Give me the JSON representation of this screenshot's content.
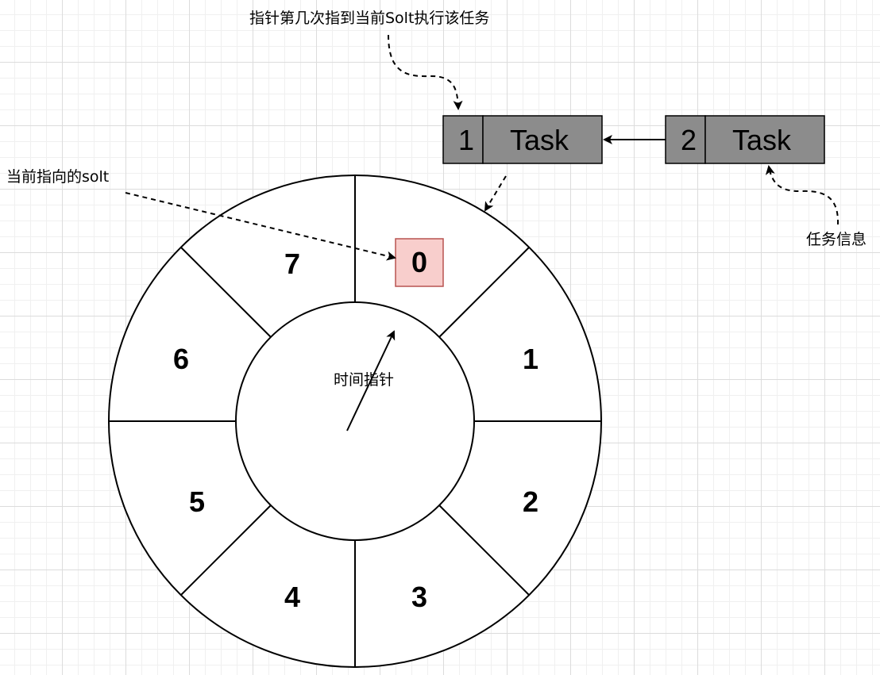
{
  "diagram": {
    "slot_labels": [
      "0",
      "1",
      "2",
      "3",
      "4",
      "5",
      "6",
      "7"
    ],
    "current_slot": "0",
    "pointer_label": "时间指针",
    "current_slot_annotation": "当前指向的solt",
    "round_annotation": "指针第几次指到当前Solt执行该任务",
    "task_info_annotation": "任务信息",
    "tasks": [
      {
        "round": "1",
        "name": "Task"
      },
      {
        "round": "2",
        "name": "Task"
      }
    ],
    "colors": {
      "task_fill": "#8c8c8c",
      "current_slot_fill": "#f8cecc",
      "current_slot_stroke": "#b85450",
      "line": "#000000",
      "grid": "#dcdcdc"
    }
  }
}
